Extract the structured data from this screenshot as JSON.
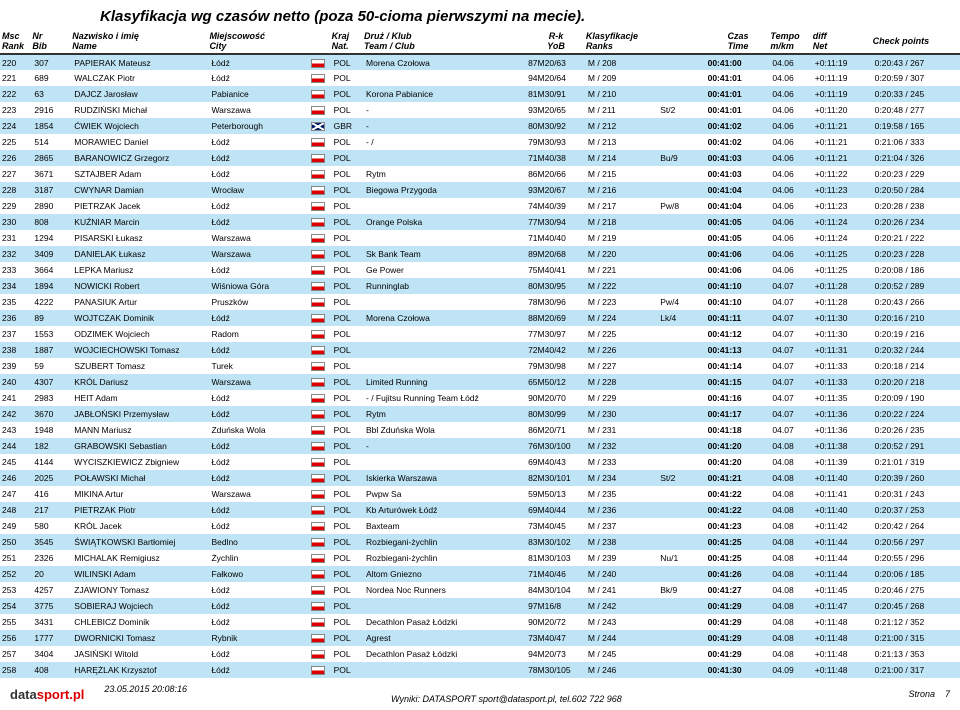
{
  "title": "Klasyfikacja wg czasów netto (poza 50-cioma pierwszymi na mecie).",
  "headers": {
    "msc": "Msc",
    "rank": "Rank",
    "nr": "Nr",
    "bib": "Bib",
    "nazwisko": "Nazwisko i imię",
    "name": "Name",
    "miejscowosc": "Miejscowość",
    "city": "City",
    "kraj": "Kraj",
    "nat": "Nat.",
    "druz": "Druż / Klub",
    "team": "Team / Club",
    "rk": "R-k",
    "yob": "YoB",
    "klas": "Klasyfikacje",
    "ranks": "Ranks",
    "czas": "Czas",
    "time": "Time",
    "tempo": "Tempo",
    "mkm": "m/km",
    "diff": "diff",
    "net": "Net",
    "check": "Check points"
  },
  "cols": {
    "msc": 26,
    "nr": 32,
    "name": 110,
    "city": 80,
    "flag": 18,
    "nat": 26,
    "club": 130,
    "rk": 48,
    "ranks": 58,
    "extra": 38,
    "time": 52,
    "tempo": 34,
    "diff": 48,
    "cp": 70
  },
  "colors": {
    "odd": "#bfe4f5",
    "even": "#ffffff",
    "flag_white": "#ffffff",
    "flag_red": "#d00"
  },
  "rows": [
    {
      "msc": "220",
      "nr": "307",
      "name": "PAPIERAK Mateusz",
      "city": "Łódź",
      "nat": "POL",
      "club": "Morena Czołowa",
      "rk": "87M20/63",
      "ranks": "M / 208",
      "extra": "",
      "time": "00:41:00",
      "tempo": "04.06",
      "diff": "+0:11:19",
      "cp": "0:20:43 / 267"
    },
    {
      "msc": "221",
      "nr": "689",
      "name": "WALCZAK Piotr",
      "city": "Łódź",
      "nat": "POL",
      "club": "",
      "rk": "94M20/64",
      "ranks": "M / 209",
      "extra": "",
      "time": "00:41:01",
      "tempo": "04.06",
      "diff": "+0:11:19",
      "cp": "0:20:59 / 307"
    },
    {
      "msc": "222",
      "nr": "63",
      "name": "DAJCZ Jarosław",
      "city": "Pabianice",
      "nat": "POL",
      "club": "Korona Pabianice",
      "rk": "81M30/91",
      "ranks": "M / 210",
      "extra": "",
      "time": "00:41:01",
      "tempo": "04.06",
      "diff": "+0:11:19",
      "cp": "0:20:33 / 245"
    },
    {
      "msc": "223",
      "nr": "2916",
      "name": "RUDZIŃSKI Michał",
      "city": "Warszawa",
      "nat": "POL",
      "club": "-",
      "rk": "93M20/65",
      "ranks": "M / 211",
      "extra": "St/2",
      "time": "00:41:01",
      "tempo": "04.06",
      "diff": "+0:11:20",
      "cp": "0:20:48 / 277"
    },
    {
      "msc": "224",
      "nr": "1854",
      "name": "ĆWIEK Wojciech",
      "city": "Peterborough",
      "nat": "GBR",
      "club": "-",
      "rk": "80M30/92",
      "ranks": "M / 212",
      "extra": "",
      "time": "00:41:02",
      "tempo": "04.06",
      "diff": "+0:11:21",
      "cp": "0:19:58 / 165"
    },
    {
      "msc": "225",
      "nr": "514",
      "name": "MORAWIEC Daniel",
      "city": "Łódź",
      "nat": "POL",
      "club": "- /",
      "rk": "79M30/93",
      "ranks": "M / 213",
      "extra": "",
      "time": "00:41:02",
      "tempo": "04.06",
      "diff": "+0:11:21",
      "cp": "0:21:06 / 333"
    },
    {
      "msc": "226",
      "nr": "2865",
      "name": "BARANOWICZ Grzegorz",
      "city": "Łódź",
      "nat": "POL",
      "club": "",
      "rk": "71M40/38",
      "ranks": "M / 214",
      "extra": "Bu/9",
      "time": "00:41:03",
      "tempo": "04.06",
      "diff": "+0:11:21",
      "cp": "0:21:04 / 326"
    },
    {
      "msc": "227",
      "nr": "3671",
      "name": "SZTAJBER Adam",
      "city": "Łódź",
      "nat": "POL",
      "club": "Rytm",
      "rk": "86M20/66",
      "ranks": "M / 215",
      "extra": "",
      "time": "00:41:03",
      "tempo": "04.06",
      "diff": "+0:11:22",
      "cp": "0:20:23 / 229"
    },
    {
      "msc": "228",
      "nr": "3187",
      "name": "CWYNAR Damian",
      "city": "Wrocław",
      "nat": "POL",
      "club": "Biegowa Przygoda",
      "rk": "93M20/67",
      "ranks": "M / 216",
      "extra": "",
      "time": "00:41:04",
      "tempo": "04.06",
      "diff": "+0:11:23",
      "cp": "0:20:50 / 284"
    },
    {
      "msc": "229",
      "nr": "2890",
      "name": "PIETRZAK Jacek",
      "city": "Łódź",
      "nat": "POL",
      "club": "",
      "rk": "74M40/39",
      "ranks": "M / 217",
      "extra": "Pw/8",
      "time": "00:41:04",
      "tempo": "04.06",
      "diff": "+0:11:23",
      "cp": "0:20:28 / 238"
    },
    {
      "msc": "230",
      "nr": "808",
      "name": "KUŹNIAR Marcin",
      "city": "Łódź",
      "nat": "POL",
      "club": "Orange Polska",
      "rk": "77M30/94",
      "ranks": "M / 218",
      "extra": "",
      "time": "00:41:05",
      "tempo": "04.06",
      "diff": "+0:11:24",
      "cp": "0:20:26 / 234"
    },
    {
      "msc": "231",
      "nr": "1294",
      "name": "PISARSKI Łukasz",
      "city": "Warszawa",
      "nat": "POL",
      "club": "",
      "rk": "71M40/40",
      "ranks": "M / 219",
      "extra": "",
      "time": "00:41:05",
      "tempo": "04.06",
      "diff": "+0:11:24",
      "cp": "0:20:21 / 222"
    },
    {
      "msc": "232",
      "nr": "3409",
      "name": "DANIELAK Łukasz",
      "city": "Warszawa",
      "nat": "POL",
      "club": "Sk Bank Team",
      "rk": "89M20/68",
      "ranks": "M / 220",
      "extra": "",
      "time": "00:41:06",
      "tempo": "04.06",
      "diff": "+0:11:25",
      "cp": "0:20:23 / 228"
    },
    {
      "msc": "233",
      "nr": "3664",
      "name": "LEPKA Mariusz",
      "city": "Łódź",
      "nat": "POL",
      "club": "Ge Power",
      "rk": "75M40/41",
      "ranks": "M / 221",
      "extra": "",
      "time": "00:41:06",
      "tempo": "04.06",
      "diff": "+0:11:25",
      "cp": "0:20:08 / 186"
    },
    {
      "msc": "234",
      "nr": "1894",
      "name": "NOWICKI Robert",
      "city": "Wiśniowa Góra",
      "nat": "POL",
      "club": "Runninglab",
      "rk": "80M30/95",
      "ranks": "M / 222",
      "extra": "",
      "time": "00:41:10",
      "tempo": "04.07",
      "diff": "+0:11:28",
      "cp": "0:20:52 / 289"
    },
    {
      "msc": "235",
      "nr": "4222",
      "name": "PANASIUK Artur",
      "city": "Pruszków",
      "nat": "POL",
      "club": "",
      "rk": "78M30/96",
      "ranks": "M / 223",
      "extra": "Pw/4",
      "time": "00:41:10",
      "tempo": "04.07",
      "diff": "+0:11:28",
      "cp": "0:20:43 / 266"
    },
    {
      "msc": "236",
      "nr": "89",
      "name": "WOJTCZAK Dominik",
      "city": "Łódź",
      "nat": "POL",
      "club": "Morena Czołowa",
      "rk": "88M20/69",
      "ranks": "M / 224",
      "extra": "Lk/4",
      "time": "00:41:11",
      "tempo": "04.07",
      "diff": "+0:11:30",
      "cp": "0:20:16 / 210"
    },
    {
      "msc": "237",
      "nr": "1553",
      "name": "ODZIMEK Wojciech",
      "city": "Radom",
      "nat": "POL",
      "club": "",
      "rk": "77M30/97",
      "ranks": "M / 225",
      "extra": "",
      "time": "00:41:12",
      "tempo": "04.07",
      "diff": "+0:11:30",
      "cp": "0:20:19 / 216"
    },
    {
      "msc": "238",
      "nr": "1887",
      "name": "WOJCIECHOWSKI Tomasz",
      "city": "Łódź",
      "nat": "POL",
      "club": "",
      "rk": "72M40/42",
      "ranks": "M / 226",
      "extra": "",
      "time": "00:41:13",
      "tempo": "04.07",
      "diff": "+0:11:31",
      "cp": "0:20:32 / 244"
    },
    {
      "msc": "239",
      "nr": "59",
      "name": "SZUBERT Tomasz",
      "city": "Turek",
      "nat": "POL",
      "club": "",
      "rk": "79M30/98",
      "ranks": "M / 227",
      "extra": "",
      "time": "00:41:14",
      "tempo": "04.07",
      "diff": "+0:11:33",
      "cp": "0:20:18 / 214"
    },
    {
      "msc": "240",
      "nr": "4307",
      "name": "KRÓL Dariusz",
      "city": "Warszawa",
      "nat": "POL",
      "club": "Limited Running",
      "rk": "65M50/12",
      "ranks": "M / 228",
      "extra": "",
      "time": "00:41:15",
      "tempo": "04.07",
      "diff": "+0:11:33",
      "cp": "0:20:20 / 218"
    },
    {
      "msc": "241",
      "nr": "2983",
      "name": "HEIT Adam",
      "city": "Łódź",
      "nat": "POL",
      "club": "- / Fujitsu Running Team Łódź",
      "rk": "90M20/70",
      "ranks": "M / 229",
      "extra": "",
      "time": "00:41:16",
      "tempo": "04.07",
      "diff": "+0:11:35",
      "cp": "0:20:09 / 190"
    },
    {
      "msc": "242",
      "nr": "3670",
      "name": "JABŁOŃSKI Przemysław",
      "city": "Łódź",
      "nat": "POL",
      "club": "Rytm",
      "rk": "80M30/99",
      "ranks": "M / 230",
      "extra": "",
      "time": "00:41:17",
      "tempo": "04.07",
      "diff": "+0:11:36",
      "cp": "0:20:22 / 224"
    },
    {
      "msc": "243",
      "nr": "1948",
      "name": "MANN Mariusz",
      "city": "Zduńska Wola",
      "nat": "POL",
      "club": "Bbl Zduńska Wola",
      "rk": "86M20/71",
      "ranks": "M / 231",
      "extra": "",
      "time": "00:41:18",
      "tempo": "04.07",
      "diff": "+0:11:36",
      "cp": "0:20:26 / 235"
    },
    {
      "msc": "244",
      "nr": "182",
      "name": "GRABOWSKI Sebastian",
      "city": "Łódź",
      "nat": "POL",
      "club": "-",
      "rk": "76M30/100",
      "ranks": "M / 232",
      "extra": "",
      "time": "00:41:20",
      "tempo": "04.08",
      "diff": "+0:11:38",
      "cp": "0:20:52 / 291"
    },
    {
      "msc": "245",
      "nr": "4144",
      "name": "WYCISZKIEWICZ Zbigniew",
      "city": "Łódź",
      "nat": "POL",
      "club": "",
      "rk": "69M40/43",
      "ranks": "M / 233",
      "extra": "",
      "time": "00:41:20",
      "tempo": "04.08",
      "diff": "+0:11:39",
      "cp": "0:21:01 / 319"
    },
    {
      "msc": "246",
      "nr": "2025",
      "name": "POŁAWSKI Michał",
      "city": "Łódź",
      "nat": "POL",
      "club": "Iskierka Warszawa",
      "rk": "82M30/101",
      "ranks": "M / 234",
      "extra": "St/2",
      "time": "00:41:21",
      "tempo": "04.08",
      "diff": "+0:11:40",
      "cp": "0:20:39 / 260"
    },
    {
      "msc": "247",
      "nr": "416",
      "name": "MIKINA Artur",
      "city": "Warszawa",
      "nat": "POL",
      "club": "Pwpw Sa",
      "rk": "59M50/13",
      "ranks": "M / 235",
      "extra": "",
      "time": "00:41:22",
      "tempo": "04.08",
      "diff": "+0:11:41",
      "cp": "0:20:31 / 243"
    },
    {
      "msc": "248",
      "nr": "217",
      "name": "PIETRZAK Piotr",
      "city": "Łódź",
      "nat": "POL",
      "club": "Kb Arturówek Łódź",
      "rk": "69M40/44",
      "ranks": "M / 236",
      "extra": "",
      "time": "00:41:22",
      "tempo": "04.08",
      "diff": "+0:11:40",
      "cp": "0:20:37 / 253"
    },
    {
      "msc": "249",
      "nr": "580",
      "name": "KRÓL Jacek",
      "city": "Łódź",
      "nat": "POL",
      "club": "Baxteam",
      "rk": "73M40/45",
      "ranks": "M / 237",
      "extra": "",
      "time": "00:41:23",
      "tempo": "04.08",
      "diff": "+0:11:42",
      "cp": "0:20:42 / 264"
    },
    {
      "msc": "250",
      "nr": "3545",
      "name": "ŚWIĄTKOWSKI Bartłomiej",
      "city": "Bedlno",
      "nat": "POL",
      "club": "Rozbiegani-żychlin",
      "rk": "83M30/102",
      "ranks": "M / 238",
      "extra": "",
      "time": "00:41:25",
      "tempo": "04.08",
      "diff": "+0:11:44",
      "cp": "0:20:56 / 297"
    },
    {
      "msc": "251",
      "nr": "2326",
      "name": "MICHALAK Remigiusz",
      "city": "Żychlin",
      "nat": "POL",
      "club": "Rozbiegani-żychlin",
      "rk": "81M30/103",
      "ranks": "M / 239",
      "extra": "Nu/1",
      "time": "00:41:25",
      "tempo": "04.08",
      "diff": "+0:11:44",
      "cp": "0:20:55 / 296"
    },
    {
      "msc": "252",
      "nr": "20",
      "name": "WILINSKI Adam",
      "city": "Fałkowo",
      "nat": "POL",
      "club": "Altom Gniezno",
      "rk": "71M40/46",
      "ranks": "M / 240",
      "extra": "",
      "time": "00:41:26",
      "tempo": "04.08",
      "diff": "+0:11:44",
      "cp": "0:20:06 / 185"
    },
    {
      "msc": "253",
      "nr": "4257",
      "name": "ZJAWIONY Tomasz",
      "city": "Łódź",
      "nat": "POL",
      "club": "Nordea Noc Runners",
      "rk": "84M30/104",
      "ranks": "M / 241",
      "extra": "Bk/9",
      "time": "00:41:27",
      "tempo": "04.08",
      "diff": "+0:11:45",
      "cp": "0:20:46 / 275"
    },
    {
      "msc": "254",
      "nr": "3775",
      "name": "SOBIERAJ Wojciech",
      "city": "Łódź",
      "nat": "POL",
      "club": "",
      "rk": "97M16/8",
      "ranks": "M / 242",
      "extra": "",
      "time": "00:41:29",
      "tempo": "04.08",
      "diff": "+0:11:47",
      "cp": "0:20:45 / 268"
    },
    {
      "msc": "255",
      "nr": "3431",
      "name": "CHLEBICZ Dominik",
      "city": "Łódź",
      "nat": "POL",
      "club": "Decathlon Pasaż Łódzki",
      "rk": "90M20/72",
      "ranks": "M / 243",
      "extra": "",
      "time": "00:41:29",
      "tempo": "04.08",
      "diff": "+0:11:48",
      "cp": "0:21:12 / 352"
    },
    {
      "msc": "256",
      "nr": "1777",
      "name": "DWORNICKI Tomasz",
      "city": "Rybnik",
      "nat": "POL",
      "club": "Agrest",
      "rk": "73M40/47",
      "ranks": "M / 244",
      "extra": "",
      "time": "00:41:29",
      "tempo": "04.08",
      "diff": "+0:11:48",
      "cp": "0:21:00 / 315"
    },
    {
      "msc": "257",
      "nr": "3404",
      "name": "JASIŃSKI Witold",
      "city": "Łódź",
      "nat": "POL",
      "club": "Decathlon Pasaż Łódzki",
      "rk": "94M20/73",
      "ranks": "M / 245",
      "extra": "",
      "time": "00:41:29",
      "tempo": "04.08",
      "diff": "+0:11:48",
      "cp": "0:21:13 / 353"
    },
    {
      "msc": "258",
      "nr": "408",
      "name": "HARĘŻLAK Krzysztof",
      "city": "Łódź",
      "nat": "POL",
      "club": "",
      "rk": "78M30/105",
      "ranks": "M / 246",
      "extra": "",
      "time": "00:41:30",
      "tempo": "04.09",
      "diff": "+0:11:48",
      "cp": "0:21:00 / 317"
    }
  ],
  "footer": {
    "timestamp": "23.05.2015 20:08:16",
    "credit": "Wyniki: DATASPORT sport@datasport.pl, tel.602 722 968",
    "page_label": "Strona",
    "page_num": "7",
    "brand1": "data",
    "brand2": "sport",
    "brand3": ".pl"
  }
}
